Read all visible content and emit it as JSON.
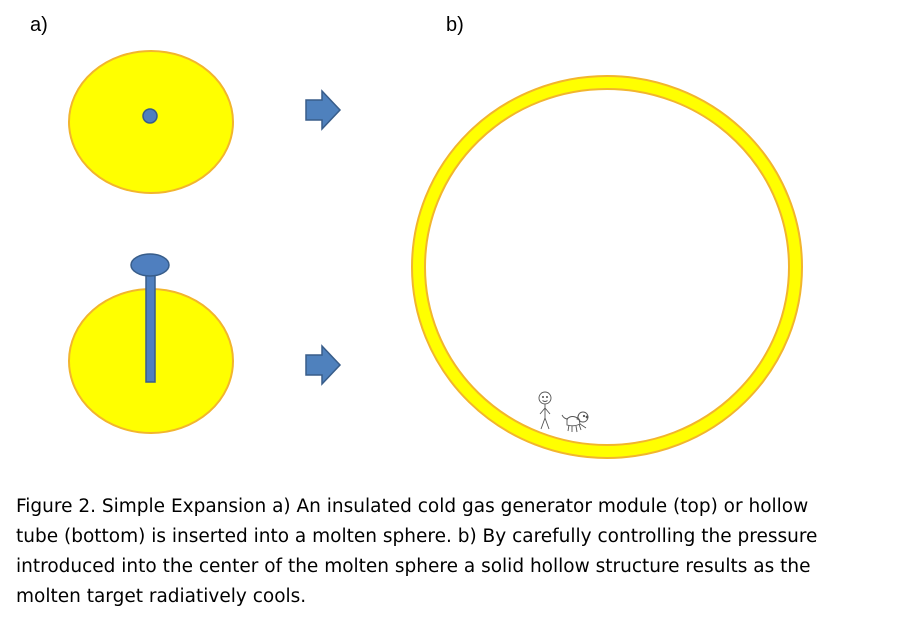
{
  "panels": {
    "a_label": "a)",
    "b_label": "b)"
  },
  "colors": {
    "molten_fill": "#ffff00",
    "molten_stroke": "#f2b52d",
    "module_fill": "#4f7fbf",
    "module_stroke": "#385d8a",
    "arrow_fill": "#4f81bd",
    "arrow_stroke": "#385d8a"
  },
  "caption": {
    "lines": [
      "Figure 2. Simple Expansion a) An insulated cold gas generator module (top) or hollow",
      "tube (bottom) is inserted into a molten sphere. b) By carefully controlling the pressure",
      "introduced into the center of the molten sphere a solid hollow structure results as the",
      "molten target radiatively cools."
    ]
  }
}
